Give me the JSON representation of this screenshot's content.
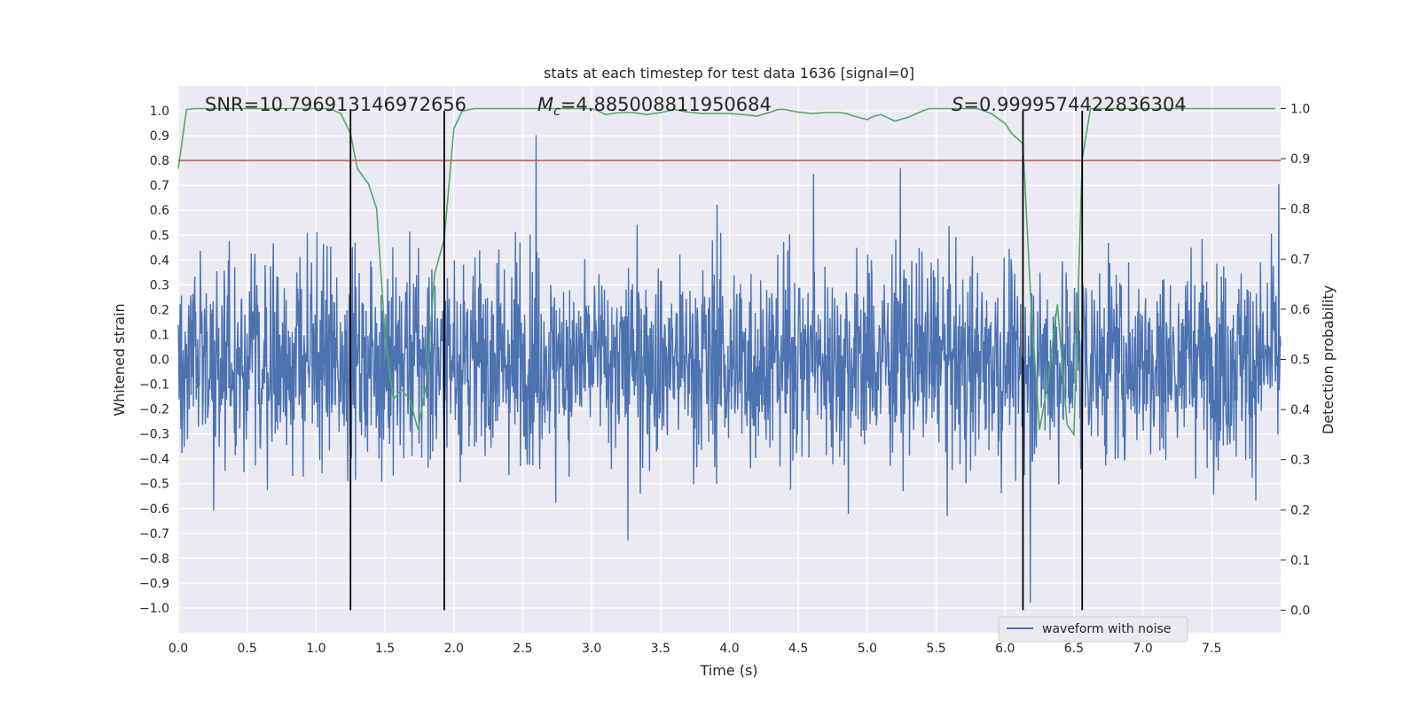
{
  "chart_data": {
    "type": "line",
    "title": "stats at each timestep for test data 1636 [signal=0]",
    "xlabel": "Time (s)",
    "ylabel": "Whitened strain",
    "y2label": "Detection probability",
    "xlim": [
      0,
      8.0
    ],
    "ylim": [
      -1.1,
      1.1
    ],
    "y2lim": [
      -0.045,
      1.045
    ],
    "x_ticks": [
      0.0,
      0.5,
      1.0,
      1.5,
      2.0,
      2.5,
      3.0,
      3.5,
      4.0,
      4.5,
      5.0,
      5.5,
      6.0,
      6.5,
      7.0,
      7.5
    ],
    "x_tick_labels": [
      "0.0",
      "0.5",
      "1.0",
      "1.5",
      "2.0",
      "2.5",
      "3.0",
      "3.5",
      "4.0",
      "4.5",
      "5.0",
      "5.5",
      "6.0",
      "6.5",
      "7.0",
      "7.5"
    ],
    "y_ticks": [
      -1.0,
      -0.9,
      -0.8,
      -0.7,
      -0.6,
      -0.5,
      -0.4,
      -0.3,
      -0.2,
      -0.1,
      0.0,
      0.1,
      0.2,
      0.3,
      0.4,
      0.5,
      0.6,
      0.7,
      0.8,
      0.9,
      1.0
    ],
    "y_tick_labels": [
      "−1.0",
      "−0.9",
      "−0.8",
      "−0.7",
      "−0.6",
      "−0.5",
      "−0.4",
      "−0.3",
      "−0.2",
      "−0.1",
      "0.0",
      "0.1",
      "0.2",
      "0.3",
      "0.4",
      "0.5",
      "0.6",
      "0.7",
      "0.8",
      "0.9",
      "1.0"
    ],
    "y2_ticks": [
      0.0,
      0.1,
      0.2,
      0.3,
      0.4,
      0.5,
      0.6,
      0.7,
      0.8,
      0.9,
      1.0
    ],
    "y2_tick_labels": [
      "0.0",
      "0.1",
      "0.2",
      "0.3",
      "0.4",
      "0.5",
      "0.6",
      "0.7",
      "0.8",
      "0.9",
      "1.0"
    ],
    "grid": true,
    "legend": {
      "placement": "lower-right",
      "entries": [
        "waveform with noise"
      ]
    },
    "annotations": {
      "snr": "SNR=10.796913146972656",
      "mc_symbol": "M",
      "mc_subscript": "c",
      "mc_value": "=4.885008811950684",
      "s_symbol": "S",
      "s_value": "=0.9999574422836304"
    },
    "threshold": {
      "axis": "y",
      "value": 0.8
    },
    "vertical_lines": [
      1.25,
      1.93,
      6.13,
      6.56
    ],
    "series": [
      {
        "name": "waveform with noise",
        "axis": "y",
        "kind": "noise",
        "approx_envelope": [
          -0.98,
          0.99
        ],
        "typical_range": [
          -0.5,
          0.5
        ]
      },
      {
        "axis": "y2",
        "kind": "line",
        "x": [
          0.0,
          0.06,
          0.12,
          0.2,
          0.3,
          0.4,
          0.5,
          0.6,
          0.7,
          0.8,
          0.9,
          1.0,
          1.1,
          1.18,
          1.25,
          1.3,
          1.38,
          1.44,
          1.5,
          1.56,
          1.62,
          1.68,
          1.74,
          1.8,
          1.86,
          1.93,
          2.0,
          2.06,
          2.15,
          2.3,
          2.5,
          2.8,
          3.0,
          3.05,
          3.1,
          3.2,
          3.3,
          3.4,
          3.5,
          3.6,
          3.7,
          3.8,
          3.9,
          4.0,
          4.1,
          4.2,
          4.3,
          4.35,
          4.4,
          4.5,
          4.6,
          4.7,
          4.8,
          4.85,
          4.9,
          5.0,
          5.05,
          5.1,
          5.2,
          5.3,
          5.4,
          5.45,
          5.5,
          5.6,
          5.7,
          5.8,
          5.9,
          6.0,
          6.05,
          6.13,
          6.19,
          6.25,
          6.31,
          6.38,
          6.45,
          6.5,
          6.56,
          6.62,
          6.7,
          6.8,
          7.0,
          7.5,
          7.96
        ],
        "values": [
          0.88,
          0.998,
          1.0,
          1.0,
          1.0,
          1.0,
          1.0,
          1.0,
          1.0,
          1.0,
          1.0,
          1.0,
          1.0,
          0.99,
          0.95,
          0.88,
          0.85,
          0.8,
          0.55,
          0.42,
          0.44,
          0.42,
          0.36,
          0.45,
          0.67,
          0.74,
          0.96,
          0.995,
          1.0,
          1.0,
          1.0,
          1.0,
          1.0,
          0.995,
          0.988,
          0.992,
          0.992,
          0.988,
          0.992,
          0.998,
          0.993,
          0.99,
          0.99,
          0.99,
          0.988,
          0.985,
          0.993,
          0.998,
          0.998,
          0.993,
          0.99,
          0.992,
          0.992,
          0.99,
          0.985,
          0.978,
          0.985,
          0.988,
          0.975,
          0.983,
          0.995,
          1.0,
          1.0,
          1.0,
          1.0,
          1.0,
          0.99,
          0.97,
          0.95,
          0.93,
          0.6,
          0.36,
          0.45,
          0.61,
          0.37,
          0.35,
          0.9,
          1.0,
          1.0,
          1.0,
          1.0,
          1.0,
          1.0
        ]
      }
    ],
    "colors": {
      "background": "#eaeaf2",
      "grid": "#ffffff",
      "noise": "#4c72b0",
      "probability": "#55a868",
      "threshold": "#c44e52",
      "vline": "#000000"
    }
  }
}
